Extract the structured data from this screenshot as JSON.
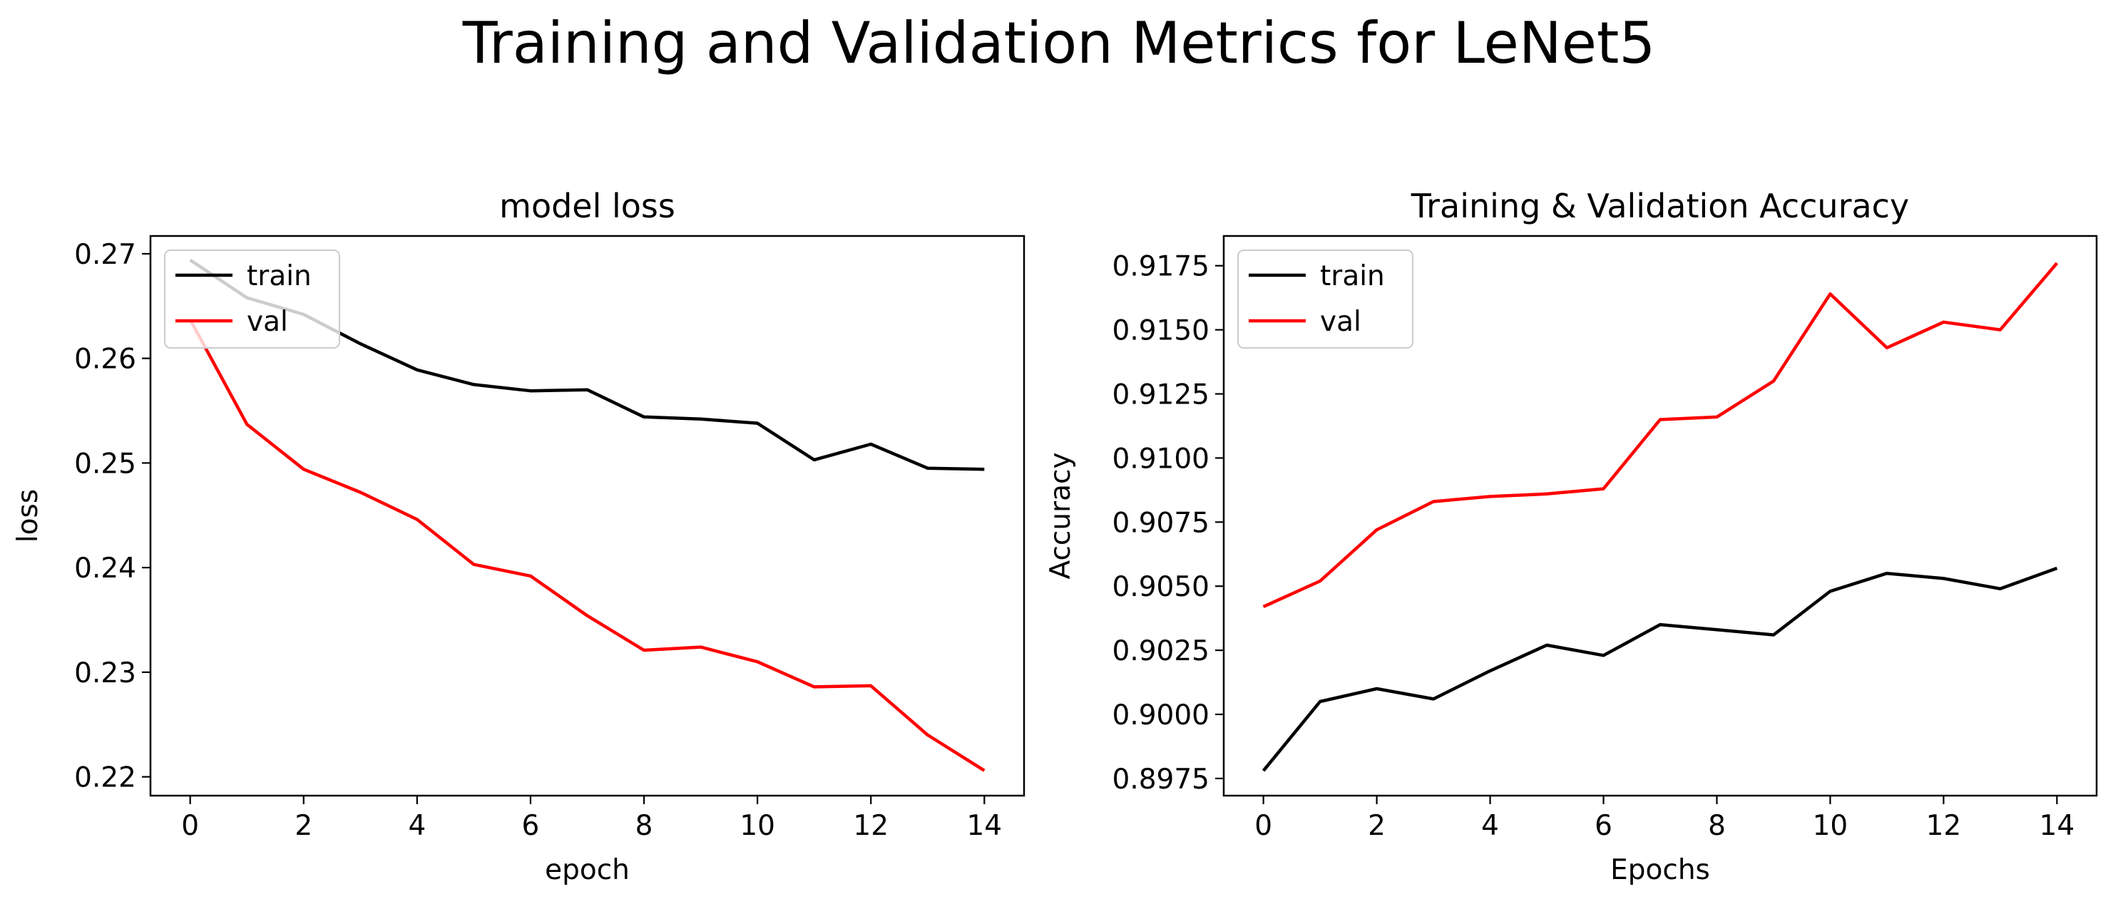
{
  "figure_title": "Training and Validation Metrics for LeNet5",
  "chart_data": [
    {
      "type": "line",
      "title": "model loss",
      "xlabel": "epoch",
      "ylabel": "loss",
      "x": [
        0,
        1,
        2,
        3,
        4,
        5,
        6,
        7,
        8,
        9,
        10,
        11,
        12,
        13,
        14
      ],
      "xlim": [
        -0.7,
        14.7
      ],
      "ylim": [
        0.2182,
        0.2717
      ],
      "xticks": [
        0,
        2,
        4,
        6,
        8,
        10,
        12,
        14
      ],
      "yticks": [
        0.22,
        0.23,
        0.24,
        0.25,
        0.26,
        0.27
      ],
      "ytick_labels": [
        "0.22",
        "0.23",
        "0.24",
        "0.25",
        "0.26",
        "0.27"
      ],
      "grid": false,
      "legend_position": "upper left",
      "series": [
        {
          "name": "train",
          "color": "#000000",
          "values": [
            0.2694,
            0.2658,
            0.2642,
            0.2614,
            0.2589,
            0.2575,
            0.2569,
            0.257,
            0.2544,
            0.2542,
            0.2538,
            0.2503,
            0.2518,
            0.2495,
            0.2494
          ]
        },
        {
          "name": "val",
          "color": "#ff0000",
          "values": [
            0.2637,
            0.2537,
            0.2494,
            0.2472,
            0.2446,
            0.2403,
            0.2392,
            0.2354,
            0.2321,
            0.2324,
            0.231,
            0.2286,
            0.2287,
            0.224,
            0.2206
          ]
        }
      ]
    },
    {
      "type": "line",
      "title": "Training & Validation Accuracy",
      "xlabel": "Epochs",
      "ylabel": "Accuracy",
      "x": [
        0,
        1,
        2,
        3,
        4,
        5,
        6,
        7,
        8,
        9,
        10,
        11,
        12,
        13,
        14
      ],
      "xlim": [
        -0.7,
        14.7
      ],
      "ylim": [
        0.89683,
        0.91866
      ],
      "xticks": [
        0,
        2,
        4,
        6,
        8,
        10,
        12,
        14
      ],
      "yticks": [
        0.8975,
        0.9,
        0.9025,
        0.905,
        0.9075,
        0.91,
        0.9125,
        0.915,
        0.9175
      ],
      "ytick_labels": [
        "0.8975",
        "0.9000",
        "0.9025",
        "0.9050",
        "0.9075",
        "0.9100",
        "0.9125",
        "0.9150",
        "0.9175"
      ],
      "grid": false,
      "legend_position": "upper left",
      "series": [
        {
          "name": "train",
          "color": "#000000",
          "values": [
            0.8978,
            0.9005,
            0.901,
            0.9006,
            0.9017,
            0.9027,
            0.9023,
            0.9035,
            0.9033,
            0.9031,
            0.9048,
            0.9055,
            0.9053,
            0.9049,
            0.9057
          ]
        },
        {
          "name": "val",
          "color": "#ff0000",
          "values": [
            0.9042,
            0.9052,
            0.9072,
            0.9083,
            0.9085,
            0.9086,
            0.9088,
            0.9115,
            0.9116,
            0.913,
            0.9164,
            0.9143,
            0.9153,
            0.915,
            0.9176
          ]
        }
      ]
    }
  ]
}
